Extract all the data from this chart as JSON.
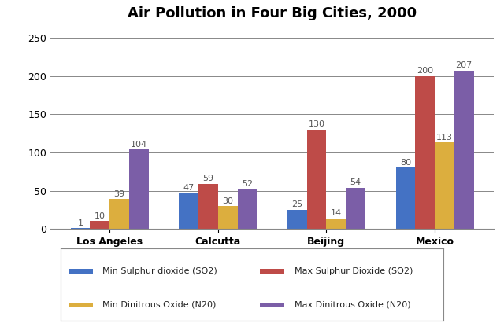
{
  "title": "Air Pollution in Four Big Cities, 2000",
  "cities": [
    "Los Angeles",
    "Calcutta",
    "Beijing",
    "Mexico"
  ],
  "series": [
    {
      "label": "Min Sulphur dioxide (SO2)",
      "color": "#4472C4",
      "values": [
        1,
        47,
        25,
        80
      ]
    },
    {
      "label": "Max Sulphur Dioxide (SO2)",
      "color": "#BE4B48",
      "values": [
        10,
        59,
        130,
        200
      ]
    },
    {
      "label": "Min Dinitrous Oxide (N20)",
      "color": "#DCAE3E",
      "values": [
        39,
        30,
        14,
        113
      ]
    },
    {
      "label": "Max Dinitrous Oxide (N20)",
      "color": "#7B5EA7",
      "values": [
        104,
        52,
        54,
        207
      ]
    }
  ],
  "ylim": [
    0,
    265
  ],
  "yticks": [
    0,
    50,
    100,
    150,
    200,
    250
  ],
  "bar_width": 0.18,
  "title_fontsize": 13,
  "tick_fontsize": 9,
  "label_fontsize": 8,
  "legend_fontsize": 8,
  "background_color": "#ffffff",
  "grid_color": "#888888"
}
